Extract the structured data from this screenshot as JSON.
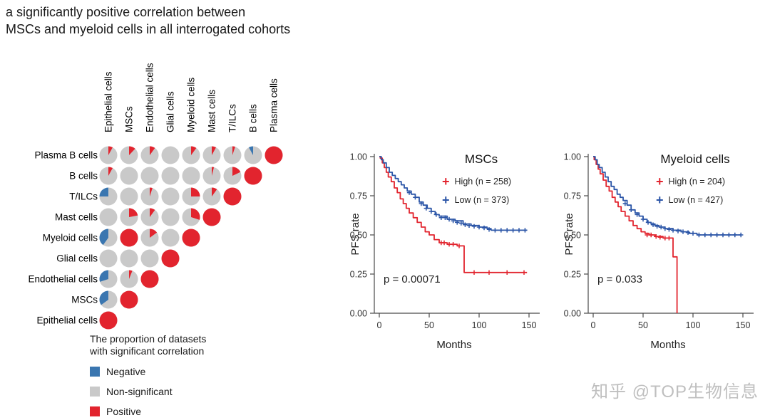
{
  "title": {
    "line1": "a significantly positive correlation between",
    "line2": "MSCs and myeloid cells in all interrogated cohorts"
  },
  "watermark": "知乎 @TOP生物信息",
  "icons": {
    "plus_marker": "+"
  },
  "colors": {
    "positive": "#e2242e",
    "negative": "#3a76b0",
    "non_significant": "#c9c9c9",
    "km_high": "#e2242e",
    "km_low": "#2b55a7",
    "axis": "#4a4a4a",
    "watermark": "#bfbfbf"
  },
  "chart_data": [
    {
      "id": "correlation-pie-matrix",
      "type": "pie",
      "description": "Lower-triangular matrix of pie charts; each pie shows the proportion of datasets with significant positive (red), negative (blue) or non-significant (gray) correlation between the row and column cell types. Diagonal pies are fully red.",
      "column_labels": [
        "Epithelial cells",
        "MSCs",
        "Endothelial cells",
        "Glial cells",
        "Myeloid cells",
        "Mast cells",
        "T/ILCs",
        "B cells",
        "Plasma cells"
      ],
      "row_labels": [
        "Plasma B cells",
        "B cells",
        "T/ILCs",
        "Mast cells",
        "Myeloid cells",
        "Glial cells",
        "Endothelial cells",
        "MSCs",
        "Epithelial cells"
      ],
      "cells": [
        [
          {
            "positive": 0.08,
            "negative": 0
          },
          {
            "positive": 0.12,
            "negative": 0
          },
          {
            "positive": 0.1,
            "negative": 0
          },
          {
            "positive": 0,
            "negative": 0
          },
          {
            "positive": 0.1,
            "negative": 0
          },
          {
            "positive": 0.08,
            "negative": 0
          },
          {
            "positive": 0.05,
            "negative": 0
          },
          {
            "positive": 0,
            "negative": 0.08
          },
          {
            "positive": 1,
            "negative": 0
          }
        ],
        [
          {
            "positive": 0.08,
            "negative": 0
          },
          {
            "positive": 0,
            "negative": 0
          },
          {
            "positive": 0,
            "negative": 0
          },
          {
            "positive": 0,
            "negative": 0
          },
          {
            "positive": 0,
            "negative": 0
          },
          {
            "positive": 0.04,
            "negative": 0
          },
          {
            "positive": 0.18,
            "negative": 0
          },
          {
            "positive": 1,
            "negative": 0
          }
        ],
        [
          {
            "positive": 0,
            "negative": 0.25
          },
          {
            "positive": 0,
            "negative": 0
          },
          {
            "positive": 0.05,
            "negative": 0
          },
          {
            "positive": 0,
            "negative": 0
          },
          {
            "positive": 0.25,
            "negative": 0
          },
          {
            "positive": 0.1,
            "negative": 0
          },
          {
            "positive": 1,
            "negative": 0
          }
        ],
        [
          {
            "positive": 0,
            "negative": 0
          },
          {
            "positive": 0.22,
            "negative": 0
          },
          {
            "positive": 0.1,
            "negative": 0
          },
          {
            "positive": 0,
            "negative": 0
          },
          {
            "positive": 0.3,
            "negative": 0
          },
          {
            "positive": 1,
            "negative": 0
          }
        ],
        [
          {
            "positive": 0,
            "negative": 0.4
          },
          {
            "positive": 1,
            "negative": 0
          },
          {
            "positive": 0.15,
            "negative": 0
          },
          {
            "positive": 0,
            "negative": 0
          },
          {
            "positive": 1,
            "negative": 0
          }
        ],
        [
          {
            "positive": 0,
            "negative": 0
          },
          {
            "positive": 0,
            "negative": 0
          },
          {
            "positive": 0,
            "negative": 0
          },
          {
            "positive": 1,
            "negative": 0
          }
        ],
        [
          {
            "positive": 0,
            "negative": 0.3
          },
          {
            "positive": 0.06,
            "negative": 0
          },
          {
            "positive": 1,
            "negative": 0
          }
        ],
        [
          {
            "positive": 0,
            "negative": 0.35
          },
          {
            "positive": 1,
            "negative": 0
          }
        ],
        [
          {
            "positive": 1,
            "negative": 0
          }
        ]
      ],
      "legend": {
        "title_line1": "The proportion of datasets",
        "title_line2": "with significant correlation",
        "items": [
          {
            "label": "Negative",
            "color_key": "negative"
          },
          {
            "label": "Non-significant",
            "color_key": "non_significant"
          },
          {
            "label": "Positive",
            "color_key": "positive"
          }
        ]
      }
    },
    {
      "id": "km-mscs",
      "type": "line",
      "title": "MSCs",
      "xlabel": "Months",
      "ylabel": "PFS rate",
      "xlim": [
        0,
        150
      ],
      "ylim": [
        0,
        1
      ],
      "x_ticks": [
        0,
        50,
        100,
        150
      ],
      "y_ticks": [
        "0.00",
        "0.25",
        "0.50",
        "0.75",
        "1.00"
      ],
      "grid": false,
      "legend_position": "top-right-inside",
      "p_value_label": "p = 0.00071",
      "series": [
        {
          "name": "High (n = 258)",
          "color": "#e2242e",
          "steps": [
            [
              0,
              1.0
            ],
            [
              1,
              0.99
            ],
            [
              3,
              0.96
            ],
            [
              5,
              0.93
            ],
            [
              7,
              0.9
            ],
            [
              9,
              0.87
            ],
            [
              12,
              0.84
            ],
            [
              15,
              0.8
            ],
            [
              18,
              0.77
            ],
            [
              21,
              0.73
            ],
            [
              24,
              0.7
            ],
            [
              27,
              0.67
            ],
            [
              30,
              0.64
            ],
            [
              34,
              0.61
            ],
            [
              38,
              0.58
            ],
            [
              42,
              0.55
            ],
            [
              46,
              0.52
            ],
            [
              50,
              0.5
            ],
            [
              55,
              0.47
            ],
            [
              60,
              0.45
            ],
            [
              68,
              0.44
            ],
            [
              78,
              0.43
            ],
            [
              85,
              0.26
            ],
            [
              148,
              0.26
            ]
          ],
          "censor_marks": [
            [
              62,
              0.45
            ],
            [
              65,
              0.45
            ],
            [
              70,
              0.44
            ],
            [
              74,
              0.44
            ],
            [
              80,
              0.43
            ],
            [
              95,
              0.26
            ],
            [
              110,
              0.26
            ],
            [
              128,
              0.26
            ],
            [
              145,
              0.26
            ]
          ]
        },
        {
          "name": "Low (n = 373)",
          "color": "#2b55a7",
          "steps": [
            [
              0,
              1.0
            ],
            [
              2,
              0.98
            ],
            [
              4,
              0.96
            ],
            [
              7,
              0.93
            ],
            [
              10,
              0.9
            ],
            [
              13,
              0.88
            ],
            [
              16,
              0.86
            ],
            [
              19,
              0.84
            ],
            [
              22,
              0.82
            ],
            [
              25,
              0.8
            ],
            [
              28,
              0.78
            ],
            [
              32,
              0.76
            ],
            [
              36,
              0.74
            ],
            [
              40,
              0.71
            ],
            [
              44,
              0.69
            ],
            [
              48,
              0.67
            ],
            [
              52,
              0.65
            ],
            [
              56,
              0.63
            ],
            [
              60,
              0.62
            ],
            [
              68,
              0.6
            ],
            [
              76,
              0.59
            ],
            [
              84,
              0.57
            ],
            [
              92,
              0.56
            ],
            [
              100,
              0.55
            ],
            [
              108,
              0.54
            ],
            [
              112,
              0.53
            ],
            [
              148,
              0.53
            ]
          ],
          "censor_marks": [
            [
              30,
              0.77
            ],
            [
              36,
              0.74
            ],
            [
              42,
              0.7
            ],
            [
              47,
              0.67
            ],
            [
              52,
              0.65
            ],
            [
              57,
              0.63
            ],
            [
              62,
              0.61
            ],
            [
              66,
              0.61
            ],
            [
              70,
              0.6
            ],
            [
              74,
              0.59
            ],
            [
              78,
              0.58
            ],
            [
              82,
              0.575
            ],
            [
              86,
              0.565
            ],
            [
              90,
              0.56
            ],
            [
              95,
              0.555
            ],
            [
              100,
              0.55
            ],
            [
              105,
              0.545
            ],
            [
              110,
              0.535
            ],
            [
              116,
              0.53
            ],
            [
              122,
              0.53
            ],
            [
              128,
              0.53
            ],
            [
              134,
              0.53
            ],
            [
              140,
              0.53
            ],
            [
              146,
              0.53
            ]
          ]
        }
      ]
    },
    {
      "id": "km-myeloid",
      "type": "line",
      "title": "Myeloid cells",
      "xlabel": "Months",
      "ylabel": "PFS rate",
      "xlim": [
        0,
        150
      ],
      "ylim": [
        0,
        1
      ],
      "x_ticks": [
        0,
        50,
        100,
        150
      ],
      "y_ticks": [
        "0.00",
        "0.25",
        "0.50",
        "0.75",
        "1.00"
      ],
      "grid": false,
      "legend_position": "top-right-inside",
      "p_value_label": "p = 0.033",
      "series": [
        {
          "name": "High (n = 204)",
          "color": "#e2242e",
          "steps": [
            [
              0,
              1.0
            ],
            [
              1,
              0.98
            ],
            [
              3,
              0.95
            ],
            [
              5,
              0.92
            ],
            [
              7,
              0.89
            ],
            [
              10,
              0.85
            ],
            [
              13,
              0.81
            ],
            [
              16,
              0.78
            ],
            [
              19,
              0.74
            ],
            [
              22,
              0.71
            ],
            [
              25,
              0.68
            ],
            [
              28,
              0.65
            ],
            [
              32,
              0.62
            ],
            [
              36,
              0.59
            ],
            [
              40,
              0.56
            ],
            [
              44,
              0.54
            ],
            [
              48,
              0.52
            ],
            [
              52,
              0.51
            ],
            [
              56,
              0.5
            ],
            [
              62,
              0.49
            ],
            [
              70,
              0.48
            ],
            [
              80,
              0.36
            ],
            [
              83,
              0.36
            ],
            [
              84,
              0.0
            ]
          ],
          "censor_marks": [
            [
              54,
              0.5
            ],
            [
              58,
              0.5
            ],
            [
              63,
              0.49
            ],
            [
              67,
              0.485
            ],
            [
              72,
              0.48
            ],
            [
              76,
              0.48
            ]
          ]
        },
        {
          "name": "Low (n = 427)",
          "color": "#2b55a7",
          "steps": [
            [
              0,
              1.0
            ],
            [
              2,
              0.98
            ],
            [
              4,
              0.95
            ],
            [
              6,
              0.93
            ],
            [
              9,
              0.9
            ],
            [
              12,
              0.87
            ],
            [
              15,
              0.84
            ],
            [
              18,
              0.81
            ],
            [
              21,
              0.79
            ],
            [
              24,
              0.76
            ],
            [
              27,
              0.74
            ],
            [
              30,
              0.72
            ],
            [
              34,
              0.69
            ],
            [
              38,
              0.66
            ],
            [
              42,
              0.64
            ],
            [
              46,
              0.62
            ],
            [
              50,
              0.6
            ],
            [
              54,
              0.58
            ],
            [
              58,
              0.57
            ],
            [
              62,
              0.56
            ],
            [
              66,
              0.55
            ],
            [
              72,
              0.54
            ],
            [
              80,
              0.53
            ],
            [
              88,
              0.52
            ],
            [
              96,
              0.51
            ],
            [
              104,
              0.5
            ],
            [
              148,
              0.5
            ]
          ],
          "censor_marks": [
            [
              32,
              0.7
            ],
            [
              38,
              0.66
            ],
            [
              44,
              0.63
            ],
            [
              50,
              0.6
            ],
            [
              55,
              0.58
            ],
            [
              60,
              0.565
            ],
            [
              64,
              0.555
            ],
            [
              68,
              0.55
            ],
            [
              72,
              0.54
            ],
            [
              76,
              0.535
            ],
            [
              80,
              0.53
            ],
            [
              85,
              0.525
            ],
            [
              90,
              0.52
            ],
            [
              95,
              0.515
            ],
            [
              100,
              0.51
            ],
            [
              106,
              0.5
            ],
            [
              112,
              0.5
            ],
            [
              118,
              0.5
            ],
            [
              124,
              0.5
            ],
            [
              130,
              0.5
            ],
            [
              136,
              0.5
            ],
            [
              142,
              0.5
            ],
            [
              148,
              0.5
            ]
          ]
        }
      ]
    }
  ]
}
